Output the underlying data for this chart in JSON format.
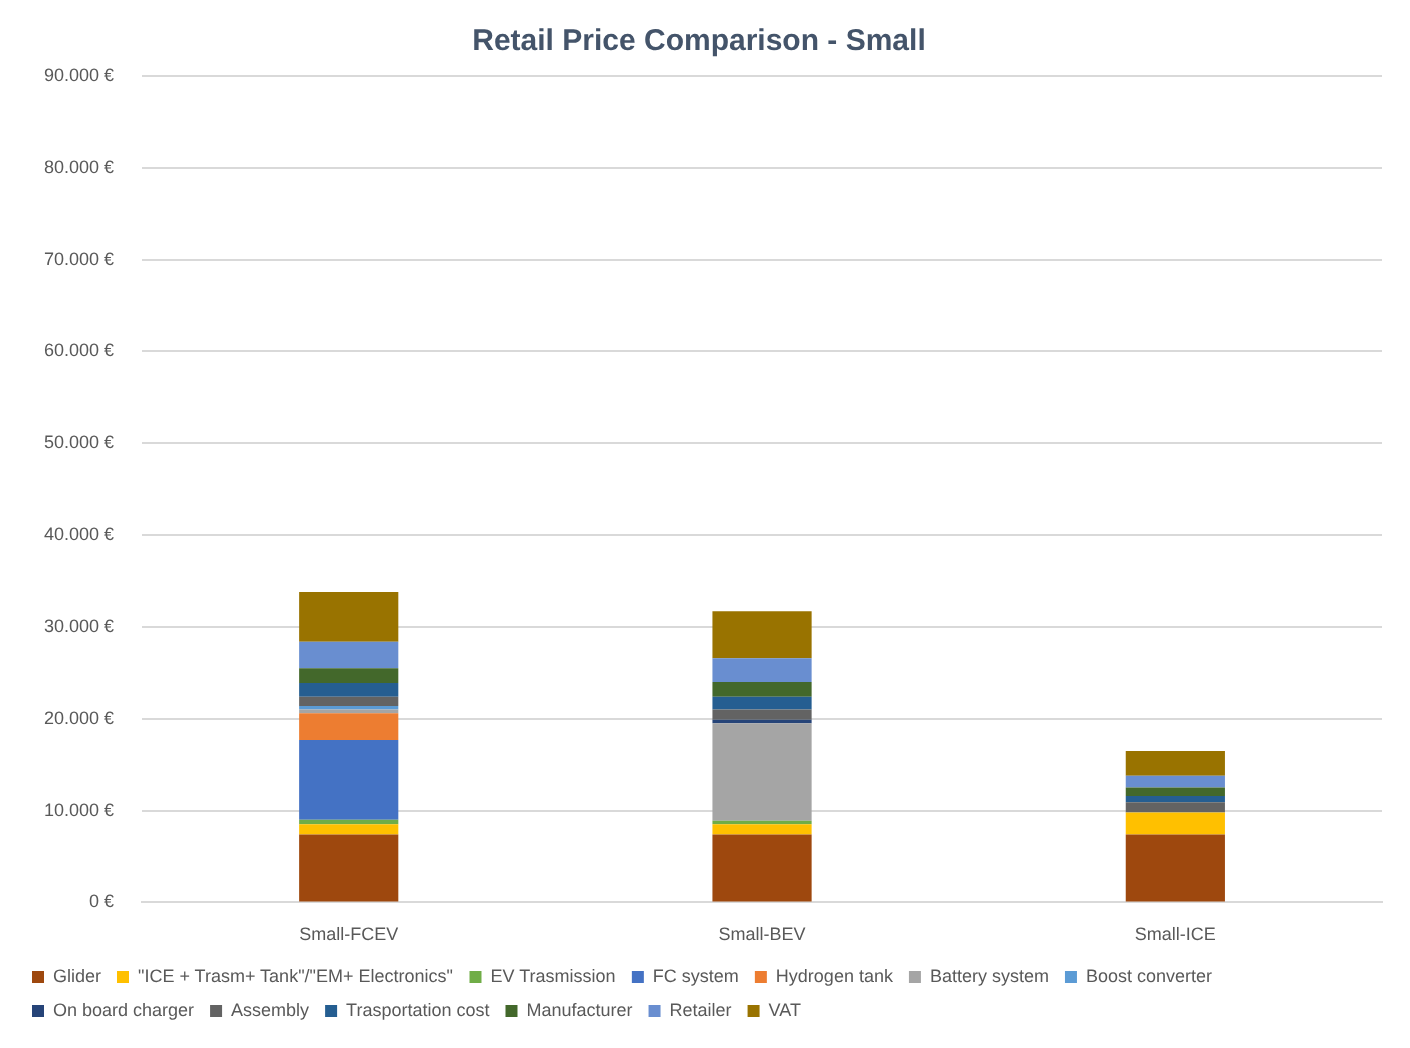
{
  "chart_data": {
    "type": "bar",
    "title": "Retail Price Comparison - Small",
    "stacked": true,
    "grid": "y",
    "legend": "bottom",
    "categories": [
      "Small-FCEV",
      "Small-BEV",
      "Small-ICE"
    ],
    "ylim": [
      0,
      90000
    ],
    "yticks": [
      {
        "value": 0,
        "label": "0 €"
      },
      {
        "value": 10000,
        "label": "10.000 €"
      },
      {
        "value": 20000,
        "label": "20.000 €"
      },
      {
        "value": 30000,
        "label": "30.000 €"
      },
      {
        "value": 40000,
        "label": "40.000 €"
      },
      {
        "value": 50000,
        "label": "50.000 €"
      },
      {
        "value": 60000,
        "label": "60.000 €"
      },
      {
        "value": 70000,
        "label": "70.000 €"
      },
      {
        "value": 80000,
        "label": "80.000 €"
      },
      {
        "value": 90000,
        "label": "90.000 €"
      }
    ],
    "series": [
      {
        "name": "Glider",
        "color": "#9e480e",
        "values": [
          7400,
          7400,
          7400
        ]
      },
      {
        "name": "\"ICE + Trasm+ Tank\"/\"EM+ Electronics\"",
        "color": "#ffc000",
        "values": [
          1100,
          1100,
          2400
        ]
      },
      {
        "name": "EV Trasmission",
        "color": "#70ad47",
        "values": [
          500,
          400,
          0
        ]
      },
      {
        "name": "FC system",
        "color": "#4472c4",
        "values": [
          8700,
          0,
          0
        ]
      },
      {
        "name": "Hydrogen tank",
        "color": "#ed7d31",
        "values": [
          2900,
          0,
          0
        ]
      },
      {
        "name": "Battery system",
        "color": "#a5a5a5",
        "values": [
          400,
          10600,
          0
        ]
      },
      {
        "name": "Boost converter",
        "color": "#5b9bd5",
        "values": [
          400,
          0,
          0
        ]
      },
      {
        "name": "On board charger",
        "color": "#264478",
        "values": [
          0,
          400,
          0
        ]
      },
      {
        "name": "Assembly",
        "color": "#636363",
        "values": [
          1000,
          1100,
          1100
        ]
      },
      {
        "name": "Trasportation cost",
        "color": "#255e91",
        "values": [
          1500,
          1400,
          700
        ]
      },
      {
        "name": "Manufacturer",
        "color": "#43682b",
        "values": [
          1600,
          1600,
          900
        ]
      },
      {
        "name": "Retailer",
        "color": "#698ed0",
        "values": [
          2900,
          2600,
          1300
        ]
      },
      {
        "name": "VAT",
        "color": "#997300",
        "values": [
          5400,
          5100,
          2700
        ]
      }
    ]
  }
}
